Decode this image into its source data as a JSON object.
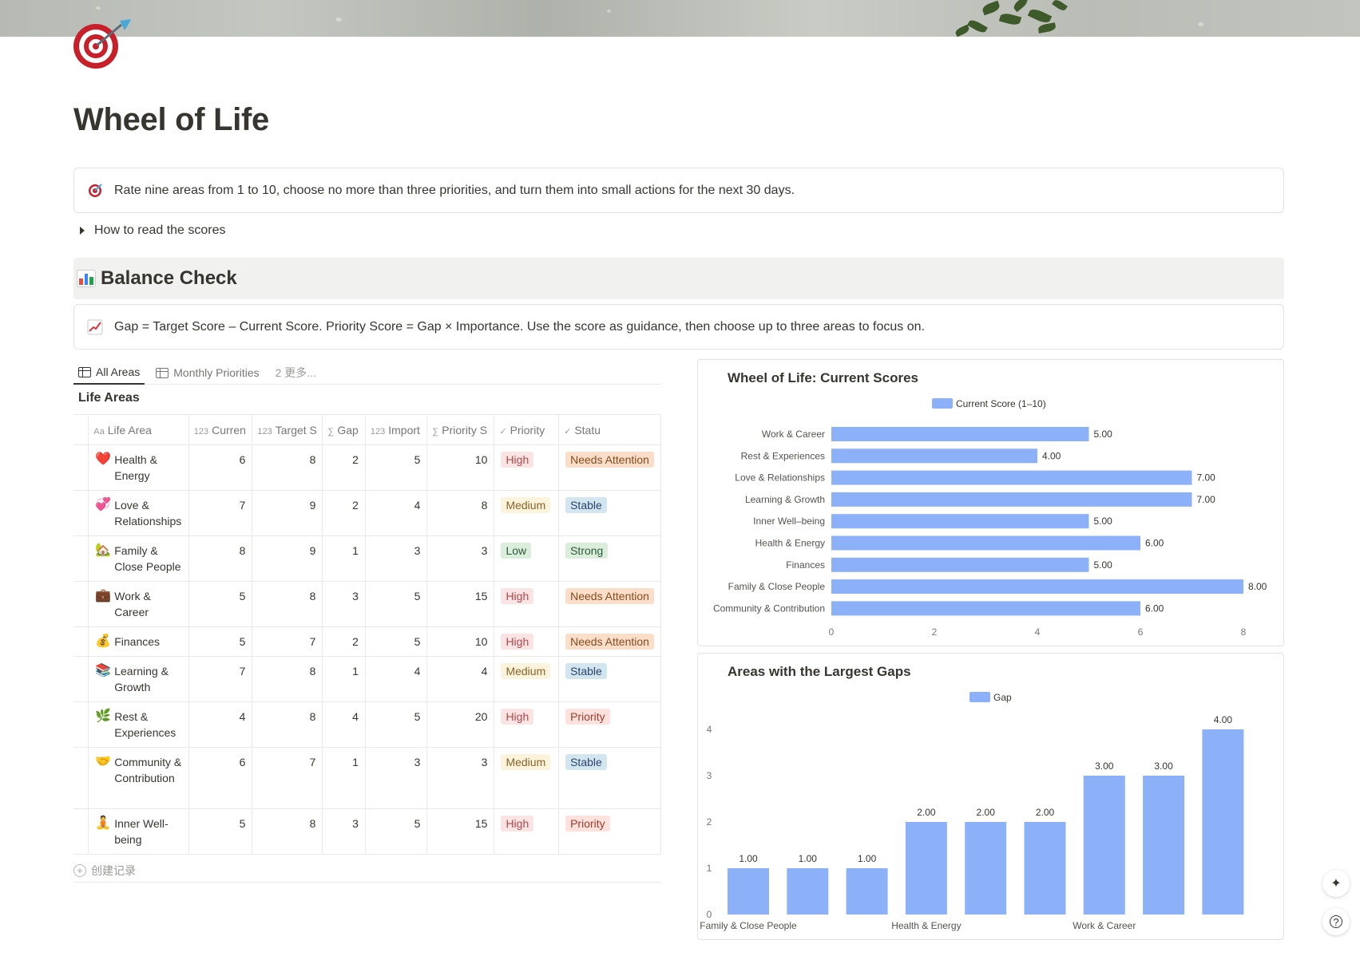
{
  "page": {
    "title": "Wheel of Life",
    "icon": "target-dart-icon"
  },
  "intro_callout": {
    "icon": "target-icon",
    "text": "Rate nine areas from 1 to 10, choose no more than three priorities, and turn them into small actions for the next 30 days."
  },
  "toggle": {
    "label": "How to read the scores"
  },
  "section": {
    "icon": "bar-chart-icon",
    "title": "Balance Check"
  },
  "gap_callout": {
    "icon": "chart-increasing-icon",
    "text": "Gap = Target Score – Current Score. Priority Score = Gap × Importance. Use the score as guidance, then choose up to three areas to focus on."
  },
  "views": {
    "tabs": [
      "All Areas",
      "Monthly Priorities"
    ],
    "more": "2 更多..."
  },
  "database": {
    "title": "Life Areas",
    "columns": [
      "Life Area",
      "Curren",
      "Target S",
      "Gap",
      "Import",
      "Priority S",
      "Priority",
      "Statu"
    ],
    "column_icons": [
      "Aa",
      "123",
      "123",
      "∑",
      "123",
      "∑",
      "✓",
      "✓"
    ],
    "rows": [
      {
        "emoji": "❤️",
        "area": "Health & Energy",
        "current": "6",
        "target": "8",
        "gap": "2",
        "importance": "5",
        "score": "10",
        "priority": "High",
        "status": "Needs Attention"
      },
      {
        "emoji": "💞",
        "area": "Love & Relationships",
        "current": "7",
        "target": "9",
        "gap": "2",
        "importance": "4",
        "score": "8",
        "priority": "Medium",
        "status": "Stable"
      },
      {
        "emoji": "🏡",
        "area": "Family & Close People",
        "current": "8",
        "target": "9",
        "gap": "1",
        "importance": "3",
        "score": "3",
        "priority": "Low",
        "status": "Strong"
      },
      {
        "emoji": "💼",
        "area": "Work & Career",
        "current": "5",
        "target": "8",
        "gap": "3",
        "importance": "5",
        "score": "15",
        "priority": "High",
        "status": "Needs Attention"
      },
      {
        "emoji": "💰",
        "area": "Finances",
        "current": "5",
        "target": "7",
        "gap": "2",
        "importance": "5",
        "score": "10",
        "priority": "High",
        "status": "Needs Attention"
      },
      {
        "emoji": "📚",
        "area": "Learning & Growth",
        "current": "7",
        "target": "8",
        "gap": "1",
        "importance": "4",
        "score": "4",
        "priority": "Medium",
        "status": "Stable"
      },
      {
        "emoji": "🌿",
        "area": "Rest & Experiences",
        "current": "4",
        "target": "8",
        "gap": "4",
        "importance": "5",
        "score": "20",
        "priority": "High",
        "status": "Priority"
      },
      {
        "emoji": "🤝",
        "area": "Community & Contribution",
        "current": "6",
        "target": "7",
        "gap": "1",
        "importance": "3",
        "score": "3",
        "priority": "Medium",
        "status": "Stable"
      },
      {
        "emoji": "🧘",
        "area": "Inner Well-being",
        "current": "5",
        "target": "8",
        "gap": "3",
        "importance": "5",
        "score": "15",
        "priority": "High",
        "status": "Priority"
      }
    ],
    "new_record": "创建记录"
  },
  "tag_colors": {
    "High": {
      "bg": "#fbe4e4",
      "fg": "#b5484a"
    },
    "Medium": {
      "bg": "#fbf3db",
      "fg": "#89632a"
    },
    "Low": {
      "bg": "#dbeddb",
      "fg": "#2b593f"
    },
    "Needs Attention": {
      "bg": "#fadec9",
      "fg": "#854c1d"
    },
    "Stable": {
      "bg": "#d3e5ef",
      "fg": "#28456c"
    },
    "Strong": {
      "bg": "#dbeddb",
      "fg": "#2b593f"
    },
    "Priority": {
      "bg": "#ffe2dd",
      "fg": "#a33a2a"
    }
  },
  "chart_data": [
    {
      "type": "bar",
      "orientation": "horizontal",
      "title": "Wheel of Life: Current Scores",
      "legend": "Current Score (1–10)",
      "legend_position": "top",
      "categories": [
        "Work & Career",
        "Rest & Experiences",
        "Love & Relationships",
        "Learning & Growth",
        "Inner Well–being",
        "Health & Energy",
        "Finances",
        "Family & Close People",
        "Community & Contribution"
      ],
      "values": [
        5,
        4,
        7,
        7,
        5,
        6,
        5,
        8,
        6
      ],
      "value_labels": [
        "5.00",
        "4.00",
        "7.00",
        "7.00",
        "5.00",
        "6.00",
        "5.00",
        "8.00",
        "6.00"
      ],
      "xlim": [
        0,
        8
      ],
      "xticks": [
        "0",
        "2",
        "4",
        "6",
        "8"
      ],
      "color": "#8cb1f8"
    },
    {
      "type": "bar",
      "title": "Areas with the Largest Gaps",
      "legend": "Gap",
      "legend_position": "top",
      "values": [
        1,
        1,
        1,
        2,
        2,
        2,
        3,
        3,
        4
      ],
      "value_labels": [
        "1.00",
        "1.00",
        "1.00",
        "2.00",
        "2.00",
        "2.00",
        "3.00",
        "3.00",
        "4.00"
      ],
      "xtick_labels": [
        "Family & Close People",
        "",
        "",
        "Health & Energy",
        "",
        "",
        "Work & Career",
        "",
        ""
      ],
      "ylim": [
        0,
        4
      ],
      "yticks": [
        "0",
        "1",
        "2",
        "3",
        "4"
      ],
      "color": "#8cb1f8"
    }
  ],
  "floating": {
    "ai_button": "✦",
    "help_button": "?"
  }
}
